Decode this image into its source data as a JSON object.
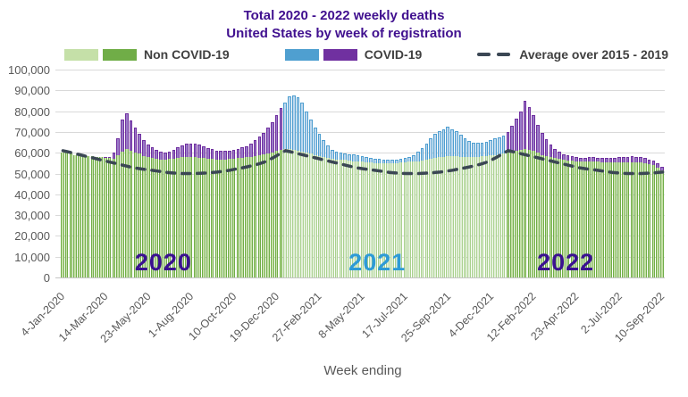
{
  "title": {
    "line1": "Total 2020 - 2022 weekly deaths",
    "line2": "United States by week of registration",
    "color": "#40108F"
  },
  "legend": {
    "non_covid_label": "Non COVID-19",
    "covid_label": "COVID-19",
    "average_label": "Average over 2015 - 2019"
  },
  "axes": {
    "y_ticks": [
      "100,000",
      "90,000",
      "80,000",
      "70,000",
      "60,000",
      "50,000",
      "40,000",
      "30,000",
      "20,000",
      "10,000",
      "0"
    ],
    "x_ticks": [
      "4-Jan-2020",
      "14-Mar-2020",
      "23-May-2020",
      "1-Aug-2020",
      "10-Oct-2020",
      "19-Dec-2020",
      "27-Feb-2021",
      "8-May-2021",
      "17-Jul-2021",
      "25-Sep-2021",
      "4-Dec-2021",
      "12-Feb-2022",
      "23-Apr-2022",
      "2-Jul-2022",
      "10-Sep-2022"
    ],
    "x_tick_week_interval": 10,
    "x_title": "Week ending"
  },
  "year_labels": [
    {
      "text": "2020",
      "color": "#3A1190",
      "x_pct": 17.0
    },
    {
      "text": "2021",
      "color": "#2E9BD6",
      "x_pct": 52.4
    },
    {
      "text": "2022",
      "color": "#3A1190",
      "x_pct": 83.6
    }
  ],
  "chart_data": {
    "type": "bar",
    "stacked": true,
    "frequency": "weekly",
    "x_start": "4-Jan-2020",
    "x_end": "10-Sep-2022",
    "n_weeks": 141,
    "ylim": [
      0,
      100000
    ],
    "grid": true,
    "legend_position": "top",
    "year_starts": [
      0,
      52,
      104
    ],
    "colors_by_year": [
      {
        "non_covid_fill": "#C5E0A8",
        "non_covid_border": "#70AD47",
        "covid_fill": "#9B7BC8",
        "covid_border": "#7030A0"
      },
      {
        "non_covid_fill": "#E2EFD9",
        "non_covid_border": "#A9D18E",
        "covid_fill": "#BDD7EE",
        "covid_border": "#4F9FD0"
      },
      {
        "non_covid_fill": "#C5E0A8",
        "non_covid_border": "#70AD47",
        "covid_fill": "#9B7BC8",
        "covid_border": "#7030A0"
      }
    ],
    "average_line_color": "#3B4754",
    "grid_color": "#D9D9D9",
    "axis_text_color": "#595959",
    "series": [
      {
        "name": "Non COVID-19",
        "type": "bar",
        "values": [
          60300,
          60000,
          59500,
          59000,
          58800,
          58700,
          58400,
          58200,
          58000,
          57800,
          57500,
          57400,
          57200,
          59000,
          60500,
          61800,
          61000,
          60000,
          59500,
          58500,
          58000,
          57500,
          57000,
          56800,
          56800,
          57000,
          57200,
          57500,
          57800,
          58000,
          58000,
          57800,
          57600,
          57400,
          57200,
          57000,
          56800,
          56800,
          56800,
          57000,
          57200,
          57400,
          57600,
          57800,
          58000,
          58400,
          58800,
          59200,
          59600,
          60000,
          61000,
          61500,
          62000,
          62000,
          61500,
          61000,
          60500,
          60000,
          59500,
          59000,
          58500,
          58000,
          57500,
          57000,
          56800,
          56500,
          56500,
          56200,
          56000,
          55800,
          55600,
          55400,
          55200,
          55000,
          54800,
          54800,
          54800,
          54900,
          55000,
          55200,
          55400,
          55600,
          55800,
          56000,
          56300,
          56600,
          57000,
          57400,
          57800,
          58000,
          58500,
          58300,
          58200,
          58000,
          57800,
          57800,
          57800,
          58000,
          58200,
          58400,
          58700,
          59000,
          59300,
          59600,
          60000,
          60500,
          61000,
          61500,
          62000,
          61500,
          61000,
          60000,
          59000,
          58500,
          58000,
          57500,
          57000,
          56600,
          56400,
          56200,
          56000,
          55800,
          55800,
          55800,
          55700,
          55600,
          55400,
          55300,
          55300,
          55300,
          55400,
          55400,
          55500,
          55500,
          55400,
          55200,
          54900,
          54500,
          54000,
          53000,
          51500
        ]
      },
      {
        "name": "COVID-19",
        "type": "bar",
        "values": [
          0,
          0,
          0,
          0,
          0,
          0,
          0,
          0,
          0,
          0,
          100,
          700,
          3000,
          8000,
          15500,
          17200,
          14500,
          12000,
          9500,
          7500,
          6000,
          5000,
          4200,
          3600,
          3400,
          3600,
          4200,
          5000,
          5800,
          6400,
          6600,
          6400,
          6200,
          5800,
          5200,
          4700,
          4300,
          4100,
          4000,
          4000,
          4200,
          4500,
          5000,
          5500,
          6300,
          7500,
          9000,
          10500,
          12500,
          14500,
          17000,
          20000,
          22000,
          25000,
          26000,
          25500,
          23500,
          20000,
          16500,
          13000,
          10500,
          8000,
          6000,
          4500,
          3800,
          3400,
          3300,
          3200,
          3100,
          3000,
          2900,
          2700,
          2500,
          2300,
          2100,
          1900,
          1800,
          1700,
          1700,
          1800,
          2000,
          2400,
          3100,
          4400,
          6000,
          8000,
          10000,
          11500,
          12800,
          13400,
          14000,
          13000,
          12000,
          10500,
          9000,
          8000,
          7200,
          6800,
          6800,
          7000,
          7400,
          7800,
          8200,
          8800,
          10000,
          12500,
          15500,
          18500,
          23000,
          20500,
          17000,
          13500,
          10500,
          8000,
          6000,
          4500,
          3500,
          2800,
          2300,
          2000,
          1800,
          1800,
          1900,
          2000,
          2100,
          2100,
          2100,
          2100,
          2200,
          2300,
          2400,
          2500,
          2600,
          2700,
          2700,
          2600,
          2500,
          2300,
          2100,
          1900,
          1700
        ]
      },
      {
        "name": "Average over 2015 - 2019",
        "type": "line",
        "style": "dashed",
        "values": [
          61000,
          60500,
          60000,
          59500,
          59000,
          58500,
          58000,
          57500,
          57000,
          56500,
          56000,
          55500,
          55000,
          54500,
          54000,
          53500,
          53000,
          52600,
          52300,
          52000,
          51800,
          51500,
          51200,
          50900,
          50600,
          50400,
          50200,
          50100,
          50000,
          50000,
          50000,
          50000,
          50100,
          50200,
          50300,
          50500,
          50700,
          51000,
          51300,
          51600,
          52000,
          52400,
          52800,
          53200,
          53700,
          54200,
          54800,
          55500,
          56500,
          57500,
          58700,
          60000,
          61000,
          60500,
          60000,
          59500,
          59000,
          58500,
          58000,
          57500,
          57000,
          56500,
          56000,
          55500,
          55000,
          54500,
          54000,
          53500,
          53000,
          52600,
          52300,
          52000,
          51800,
          51500,
          51200,
          50900,
          50600,
          50400,
          50200,
          50100,
          50000,
          50000,
          50000,
          50000,
          50100,
          50200,
          50300,
          50500,
          50700,
          51000,
          51300,
          51600,
          52000,
          52400,
          52800,
          53200,
          53700,
          54200,
          54800,
          55500,
          56500,
          57500,
          58700,
          60000,
          61000,
          60500,
          60000,
          59500,
          59000,
          58500,
          58000,
          57500,
          57000,
          56500,
          56000,
          55500,
          55000,
          54500,
          54000,
          53500,
          53000,
          52600,
          52300,
          52000,
          51800,
          51500,
          51200,
          50900,
          50600,
          50400,
          50200,
          50100,
          50000,
          50000,
          50000,
          50000,
          50100,
          50200,
          50300,
          50500,
          50700
        ]
      }
    ]
  }
}
